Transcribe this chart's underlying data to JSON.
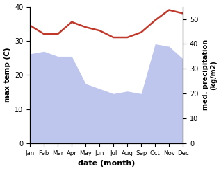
{
  "months": [
    "Jan",
    "Feb",
    "Mar",
    "Apr",
    "May",
    "Jun",
    "Jul",
    "Aug",
    "Sep",
    "Oct",
    "Nov",
    "Dec"
  ],
  "x": [
    0,
    1,
    2,
    3,
    4,
    5,
    6,
    7,
    8,
    9,
    10,
    11
  ],
  "temp_max": [
    34.5,
    32,
    32,
    35.5,
    34,
    33,
    31,
    31,
    32.5,
    36,
    39,
    38
  ],
  "precipitation": [
    36,
    37,
    35,
    35,
    24,
    22,
    20,
    21,
    20,
    40,
    39,
    34
  ],
  "precip_scale_max": 55,
  "temp_scale_max": 40,
  "temp_scale_min": 0,
  "precip_scale_min": 0,
  "fill_color": "#aab4e8",
  "fill_alpha": 0.75,
  "line_color": "#c0392b",
  "line_width": 1.8,
  "xlabel": "date (month)",
  "ylabel_left": "max temp (C)",
  "ylabel_right": "med. precipitation\n(kg/m2)",
  "background_color": "#ffffff",
  "yticks_left": [
    0,
    10,
    20,
    30,
    40
  ],
  "yticks_right": [
    0,
    10,
    20,
    30,
    40,
    50
  ]
}
